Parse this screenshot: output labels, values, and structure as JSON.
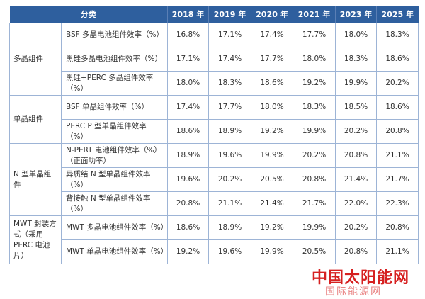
{
  "table": {
    "headers": [
      "分类",
      "2018 年",
      "2019 年",
      "2020 年",
      "2021 年",
      "2023 年",
      "2025 年"
    ],
    "groups": [
      {
        "label": "多晶组件",
        "rows": [
          {
            "item": "BSF 多晶电池组件效率（%）",
            "values": [
              "16.8%",
              "17.1%",
              "17.4%",
              "17.7%",
              "18.0%",
              "18.3%"
            ]
          },
          {
            "item": "黑硅多晶电池组件效率（%）",
            "values": [
              "17.1%",
              "17.4%",
              "17.7%",
              "18.0%",
              "18.3%",
              "18.6%"
            ]
          },
          {
            "item": "黑硅+PERC 多晶组件效率（%）",
            "values": [
              "18.0%",
              "18.3%",
              "18.6%",
              "19.2%",
              "19.9%",
              "20.2%"
            ]
          }
        ]
      },
      {
        "label": "单晶组件",
        "rows": [
          {
            "item": "BSF 单晶组件效率（%）",
            "values": [
              "17.4%",
              "17.7%",
              "18.0%",
              "18.3%",
              "18.5%",
              "18.6%"
            ]
          },
          {
            "item": "PERC P 型单晶组件效率（%）",
            "values": [
              "18.6%",
              "18.9%",
              "19.2%",
              "19.9%",
              "20.2%",
              "20.8%"
            ]
          }
        ]
      },
      {
        "label": "N 型单晶组件",
        "rows": [
          {
            "item": "N-PERT 电池组件效率（%）（正面功率）",
            "values": [
              "18.9%",
              "19.6%",
              "19.9%",
              "20.2%",
              "20.8%",
              "21.1%"
            ]
          },
          {
            "item": "异质结 N 型单晶组件效率（%）",
            "values": [
              "19.6%",
              "20.2%",
              "20.5%",
              "20.8%",
              "21.4%",
              "21.7%"
            ]
          },
          {
            "item": "背接触 N 型单晶组件效率（%）",
            "values": [
              "20.8%",
              "21.1%",
              "21.4%",
              "21.7%",
              "22.0%",
              "22.3%"
            ]
          }
        ]
      },
      {
        "label": "MWT 封装方式（采用 PERC 电池片）",
        "rows": [
          {
            "item": "MWT 多晶电池组件效率（%）",
            "values": [
              "18.6%",
              "18.9%",
              "19.2%",
              "19.9%",
              "20.2%",
              "20.8%"
            ]
          },
          {
            "item": "MWT 单晶电池组件效率（%）",
            "values": [
              "19.2%",
              "19.6%",
              "19.9%",
              "20.5%",
              "20.8%",
              "21.1%"
            ]
          }
        ]
      }
    ]
  },
  "watermark": {
    "title": "中国太阳能网",
    "subtitle": "国际能源网",
    "color": "#d62020"
  },
  "colors": {
    "header_bg": "#2e5f9e",
    "header_text": "#ffffff",
    "border": "#9db4d6"
  }
}
